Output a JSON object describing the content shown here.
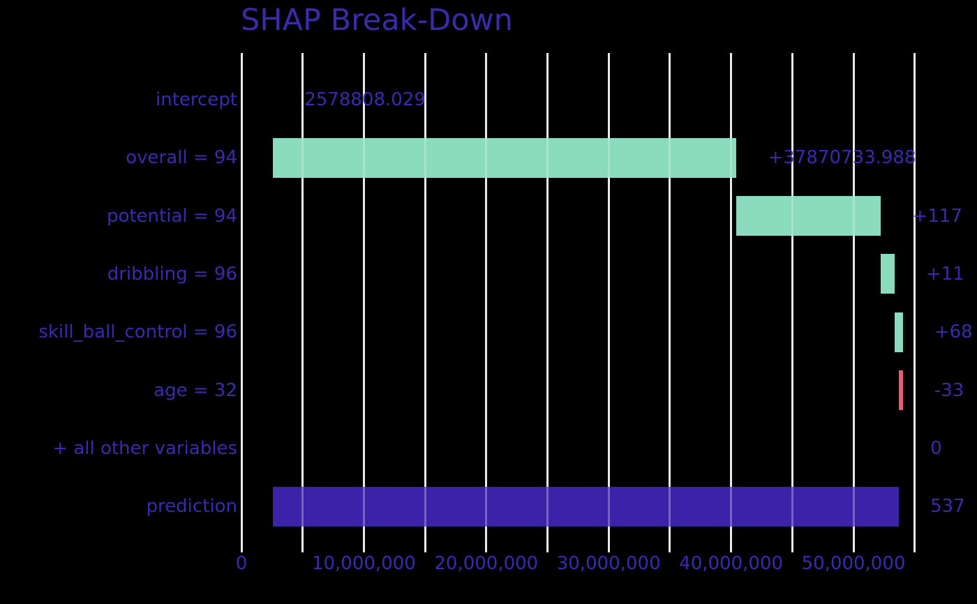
{
  "title": "SHAP Break-Down",
  "colors": {
    "background": "#000000",
    "text": "#3c2aac",
    "positive_bar": "#8bdcbe",
    "negative_bar": "#e85b75",
    "prediction_bar": "#3b22a8",
    "gridline": "#e9e9e9"
  },
  "chart_data": {
    "type": "bar",
    "subtype": "shap-breakdown-waterfall",
    "orientation": "horizontal",
    "title": "SHAP Break-Down",
    "xlabel": "",
    "ylabel": "",
    "xlim": [
      0,
      55000000
    ],
    "grid": true,
    "gridline_step": 5000000,
    "x_ticks": [
      {
        "value": 0,
        "label": "0"
      },
      {
        "value": 10000000,
        "label": "10,000,000"
      },
      {
        "value": 20000000,
        "label": "20,000,000"
      },
      {
        "value": 30000000,
        "label": "30,000,000"
      },
      {
        "value": 40000000,
        "label": "40,000,000"
      },
      {
        "value": 50000000,
        "label": "50,000,000"
      }
    ],
    "rows": [
      {
        "label": "intercept",
        "value_label": "2578808.029",
        "kind": "intercept",
        "bar_start": 0,
        "bar_end": 2578808.029,
        "bar_visible": false
      },
      {
        "label": "overall = 94",
        "value_label": "+37870733.988",
        "kind": "positive",
        "bar_start": 2578808.029,
        "bar_end": 40449542.017,
        "bar_visible": true
      },
      {
        "label": "potential = 94",
        "value_label": "+117",
        "kind": "positive",
        "bar_start": 40449542.017,
        "bar_end": 52250000,
        "bar_visible": true
      },
      {
        "label": "dribbling = 96",
        "value_label": "+11",
        "kind": "positive",
        "bar_start": 52250000,
        "bar_end": 53360000,
        "bar_visible": true
      },
      {
        "label": "skill_ball_control = 96",
        "value_label": "+68",
        "kind": "positive",
        "bar_start": 53360000,
        "bar_end": 54040000,
        "bar_visible": true
      },
      {
        "label": "age = 32",
        "value_label": "-33",
        "kind": "negative",
        "bar_start": 54040000,
        "bar_end": 53710000,
        "bar_visible": true
      },
      {
        "label": "+ all other variables",
        "value_label": "0",
        "kind": "neutral",
        "bar_start": 53710000,
        "bar_end": 53710000,
        "bar_visible": false
      },
      {
        "label": "prediction",
        "value_label": "537",
        "kind": "prediction",
        "bar_start": 2578808.029,
        "bar_end": 53710000,
        "bar_visible": true
      }
    ]
  }
}
